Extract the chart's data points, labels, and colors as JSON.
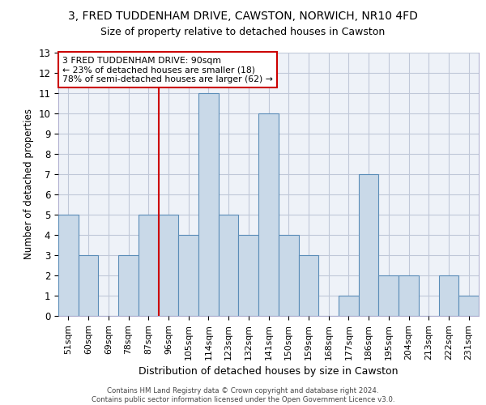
{
  "title_line1": "3, FRED TUDDENHAM DRIVE, CAWSTON, NORWICH, NR10 4FD",
  "title_line2": "Size of property relative to detached houses in Cawston",
  "xlabel": "Distribution of detached houses by size in Cawston",
  "ylabel": "Number of detached properties",
  "footnote1": "Contains HM Land Registry data © Crown copyright and database right 2024.",
  "footnote2": "Contains public sector information licensed under the Open Government Licence v3.0.",
  "categories": [
    "51sqm",
    "60sqm",
    "69sqm",
    "78sqm",
    "87sqm",
    "96sqm",
    "105sqm",
    "114sqm",
    "123sqm",
    "132sqm",
    "141sqm",
    "150sqm",
    "159sqm",
    "168sqm",
    "177sqm",
    "186sqm",
    "195sqm",
    "204sqm",
    "213sqm",
    "222sqm",
    "231sqm"
  ],
  "values": [
    5,
    3,
    0,
    3,
    5,
    5,
    4,
    11,
    5,
    4,
    10,
    4,
    3,
    0,
    1,
    7,
    2,
    2,
    0,
    2,
    1
  ],
  "bar_color": "#c9d9e8",
  "bar_edge_color": "#5b8db8",
  "grid_color": "#c0c8d8",
  "ylim": [
    0,
    13
  ],
  "yticks": [
    0,
    1,
    2,
    3,
    4,
    5,
    6,
    7,
    8,
    9,
    10,
    11,
    12,
    13
  ],
  "annotation_text": "3 FRED TUDDENHAM DRIVE: 90sqm\n← 23% of detached houses are smaller (18)\n78% of semi-detached houses are larger (62) →",
  "annotation_box_color": "#ffffff",
  "annotation_box_edge": "#cc0000",
  "vline_color": "#cc0000",
  "vline_x_index": 4.5,
  "bg_color": "#eef2f8"
}
